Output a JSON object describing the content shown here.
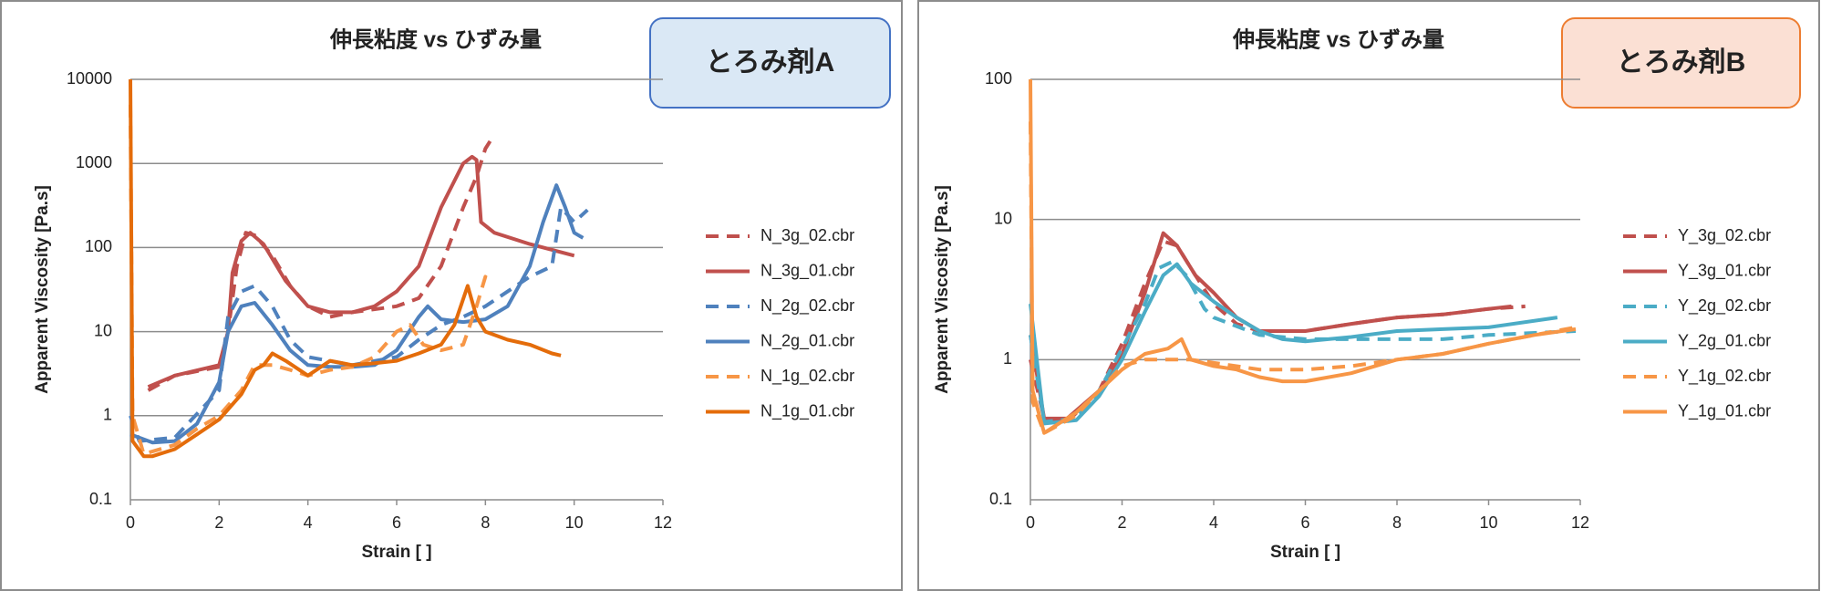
{
  "chart_data": [
    {
      "type": "line",
      "title": "伸長粘度 vs ひずみ量",
      "annotation": "とろみ剤A",
      "annotation_fill": "#dae8f5",
      "annotation_border": "#4472c4",
      "xlabel": "Strain [ ]",
      "ylabel": "Apparent Viscosity [Pa.s]",
      "xlim": [
        0,
        12
      ],
      "xticks": [
        0,
        2,
        4,
        6,
        8,
        10,
        12
      ],
      "ylim": [
        0.1,
        10000
      ],
      "yticks": [
        0.1,
        1,
        10,
        100,
        1000,
        10000
      ],
      "log_y": true,
      "grid": true,
      "series": [
        {
          "name": "N_3g_02.cbr",
          "color": "#c0504d",
          "dashed": true,
          "x": [
            0.4,
            1,
            2,
            2.2,
            2.4,
            2.6,
            2.8,
            3.2,
            3.6,
            4,
            4.5,
            5,
            6,
            6.5,
            7,
            7.5,
            7.8,
            8,
            8.2
          ],
          "values": [
            2.0,
            3,
            3.8,
            10,
            60,
            150,
            140,
            80,
            35,
            20,
            15,
            17,
            20,
            25,
            60,
            300,
            700,
            1500,
            2200
          ]
        },
        {
          "name": "N_3g_01.cbr",
          "color": "#c0504d",
          "dashed": false,
          "x": [
            0.4,
            1,
            2,
            2.2,
            2.3,
            2.5,
            2.7,
            3,
            3.5,
            4,
            4.5,
            5,
            5.5,
            6,
            6.5,
            7,
            7.5,
            7.7,
            7.8,
            7.9,
            8.2,
            9,
            10
          ],
          "values": [
            2.2,
            3,
            4,
            10,
            50,
            120,
            150,
            110,
            40,
            20,
            17,
            17,
            20,
            30,
            60,
            300,
            1000,
            1200,
            1100,
            200,
            150,
            110,
            80
          ]
        },
        {
          "name": "N_2g_02.cbr",
          "color": "#4f81bd",
          "dashed": true,
          "x": [
            0,
            0.2,
            1,
            2,
            2.2,
            2.5,
            2.8,
            3.2,
            3.6,
            4,
            5,
            6,
            6.5,
            7,
            7.5,
            8,
            8.5,
            9,
            9.5,
            9.7,
            10,
            10.3
          ],
          "values": [
            1,
            0.5,
            0.55,
            2,
            15,
            30,
            35,
            20,
            8,
            5,
            4,
            5,
            8,
            12,
            15,
            20,
            30,
            45,
            60,
            300,
            200,
            280
          ]
        },
        {
          "name": "N_2g_01.cbr",
          "color": "#4f81bd",
          "dashed": false,
          "x": [
            0,
            0.5,
            1,
            1.5,
            2,
            2.2,
            2.5,
            2.8,
            3.2,
            3.6,
            4,
            4.5,
            5,
            5.5,
            6,
            6.5,
            6.7,
            7,
            7.5,
            8,
            8.5,
            9,
            9.3,
            9.6,
            9.8,
            10,
            10.2
          ],
          "values": [
            0.6,
            0.48,
            0.5,
            0.8,
            2.5,
            10,
            20,
            22,
            12,
            6,
            4,
            3.8,
            3.8,
            4,
            6,
            15,
            20,
            14,
            13,
            14,
            20,
            60,
            200,
            550,
            300,
            150,
            130
          ]
        },
        {
          "name": "N_1g_02.cbr",
          "color": "#f79646",
          "dashed": true,
          "x": [
            0,
            0.05,
            0.3,
            1,
            1.5,
            2,
            2.5,
            2.8,
            3.2,
            3.6,
            4,
            4.5,
            5,
            5.5,
            6,
            6.3,
            6.6,
            7,
            7.5,
            7.8,
            8,
            8.1
          ],
          "values": [
            5000,
            1,
            0.35,
            0.45,
            0.7,
            1,
            2,
            4,
            4,
            3.5,
            3,
            3.5,
            3.8,
            5,
            10,
            12,
            7,
            6,
            7,
            20,
            45,
            40
          ]
        },
        {
          "name": "N_1g_01.cbr",
          "color": "#e46c0a",
          "dashed": false,
          "x": [
            0,
            0.05,
            0.3,
            0.5,
            1,
            1.5,
            2,
            2.5,
            2.8,
            3,
            3.2,
            3.5,
            4,
            4.5,
            5,
            5.5,
            6,
            6.5,
            7,
            7.3,
            7.6,
            7.8,
            8,
            8.5,
            9,
            9.5,
            9.7
          ],
          "values": [
            10000,
            0.5,
            0.33,
            0.33,
            0.4,
            0.6,
            0.9,
            1.8,
            3.5,
            4,
            5.5,
            4.5,
            3,
            4.5,
            4,
            4.2,
            4.5,
            5.5,
            7,
            12,
            35,
            15,
            10,
            8,
            7,
            5.5,
            5.2
          ]
        }
      ]
    },
    {
      "type": "line",
      "title": "伸長粘度 vs ひずみ量",
      "annotation": "とろみ剤B",
      "annotation_fill": "#fbe0d4",
      "annotation_border": "#ed7d31",
      "xlabel": "Strain [ ]",
      "ylabel": "Apparent Viscosity [Pa.s]",
      "xlim": [
        0,
        12
      ],
      "xticks": [
        0,
        2,
        4,
        6,
        8,
        10,
        12
      ],
      "ylim": [
        0.1,
        100
      ],
      "yticks": [
        0.1,
        1,
        10,
        100
      ],
      "log_y": true,
      "grid": true,
      "series": [
        {
          "name": "Y_3g_02.cbr",
          "color": "#c0504d",
          "dashed": true,
          "x": [
            0,
            0.3,
            0.8,
            1.5,
            2,
            2.5,
            2.9,
            3.2,
            3.6,
            4,
            4.5,
            5,
            6,
            7,
            8,
            9,
            10,
            10.8
          ],
          "values": [
            1,
            0.38,
            0.36,
            0.6,
            1.3,
            3.5,
            7,
            6.5,
            4,
            2.5,
            1.8,
            1.6,
            1.6,
            1.8,
            2,
            2.1,
            2.3,
            2.4
          ]
        },
        {
          "name": "Y_3g_01.cbr",
          "color": "#c0504d",
          "dashed": false,
          "x": [
            0,
            0.3,
            0.8,
            1.5,
            2,
            2.5,
            2.9,
            3.2,
            3.6,
            4,
            4.5,
            5,
            6,
            7,
            8,
            9,
            10,
            10.5
          ],
          "values": [
            1.5,
            0.38,
            0.38,
            0.6,
            1.1,
            3,
            8,
            6.5,
            4,
            3,
            2,
            1.6,
            1.6,
            1.8,
            2,
            2.1,
            2.3,
            2.4
          ]
        },
        {
          "name": "Y_2g_02.cbr",
          "color": "#4bacc6",
          "dashed": true,
          "x": [
            0,
            0.3,
            1,
            1.5,
            2,
            2.5,
            2.8,
            3.1,
            3.4,
            3.8,
            4,
            5,
            6,
            7,
            8,
            9,
            10,
            11.9
          ],
          "values": [
            1.5,
            0.36,
            0.38,
            0.6,
            1.2,
            2.5,
            4.5,
            5,
            4,
            2.3,
            2,
            1.5,
            1.4,
            1.4,
            1.4,
            1.4,
            1.5,
            1.6
          ]
        },
        {
          "name": "Y_2g_01.cbr",
          "color": "#4bacc6",
          "dashed": false,
          "x": [
            0,
            0.3,
            1,
            1.5,
            2,
            2.5,
            2.9,
            3.2,
            3.5,
            4,
            4.5,
            5,
            5.5,
            6,
            7,
            8,
            9,
            10,
            11.5
          ],
          "values": [
            2.5,
            0.35,
            0.37,
            0.55,
            1,
            2.2,
            4,
            4.8,
            3.5,
            2.6,
            2,
            1.6,
            1.4,
            1.35,
            1.45,
            1.6,
            1.65,
            1.7,
            2
          ]
        },
        {
          "name": "Y_1g_02.cbr",
          "color": "#f79646",
          "dashed": true,
          "x": [
            0,
            0.05,
            0.3,
            1,
            1.5,
            2,
            2.5,
            3,
            3.5,
            4,
            5,
            6,
            7,
            8,
            9,
            10,
            11,
            11.9
          ],
          "values": [
            50,
            0.5,
            0.3,
            0.4,
            0.6,
            0.9,
            1.0,
            1.0,
            1.0,
            0.95,
            0.85,
            0.85,
            0.9,
            1.0,
            1.1,
            1.3,
            1.5,
            1.7
          ]
        },
        {
          "name": "Y_1g_01.cbr",
          "color": "#f79646",
          "dashed": false,
          "x": [
            0,
            0.05,
            0.3,
            1,
            1.5,
            2,
            2.5,
            3,
            3.3,
            3.5,
            4,
            4.5,
            5,
            5.5,
            6,
            7,
            8,
            9,
            10,
            11,
            11.9
          ],
          "values": [
            100,
            0.6,
            0.3,
            0.42,
            0.6,
            0.85,
            1.1,
            1.2,
            1.4,
            1.0,
            0.9,
            0.85,
            0.75,
            0.7,
            0.7,
            0.8,
            1.0,
            1.1,
            1.3,
            1.5,
            1.65
          ]
        }
      ]
    }
  ]
}
